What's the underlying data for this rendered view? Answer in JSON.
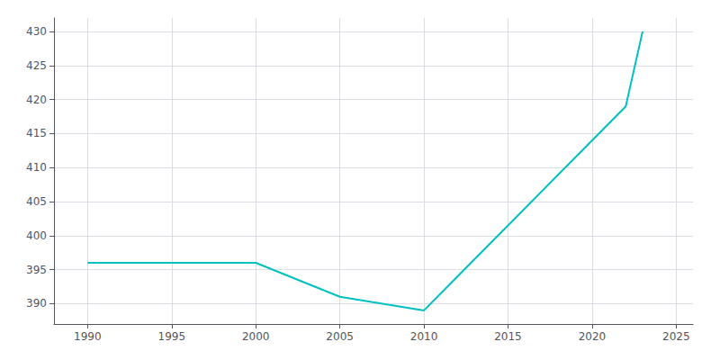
{
  "chart_data": {
    "type": "line",
    "x": [
      1990,
      2000,
      2005,
      2010,
      2020,
      2022,
      2023
    ],
    "values": [
      396,
      396,
      391,
      389,
      414,
      419,
      430
    ],
    "color": "#00C0C0",
    "xlim": [
      1988,
      2026
    ],
    "ylim": [
      387,
      432
    ],
    "xticks": [
      1990,
      1995,
      2000,
      2005,
      2010,
      2015,
      2020,
      2025
    ],
    "yticks": [
      390,
      395,
      400,
      405,
      410,
      415,
      420,
      425,
      430
    ],
    "grid": true
  }
}
